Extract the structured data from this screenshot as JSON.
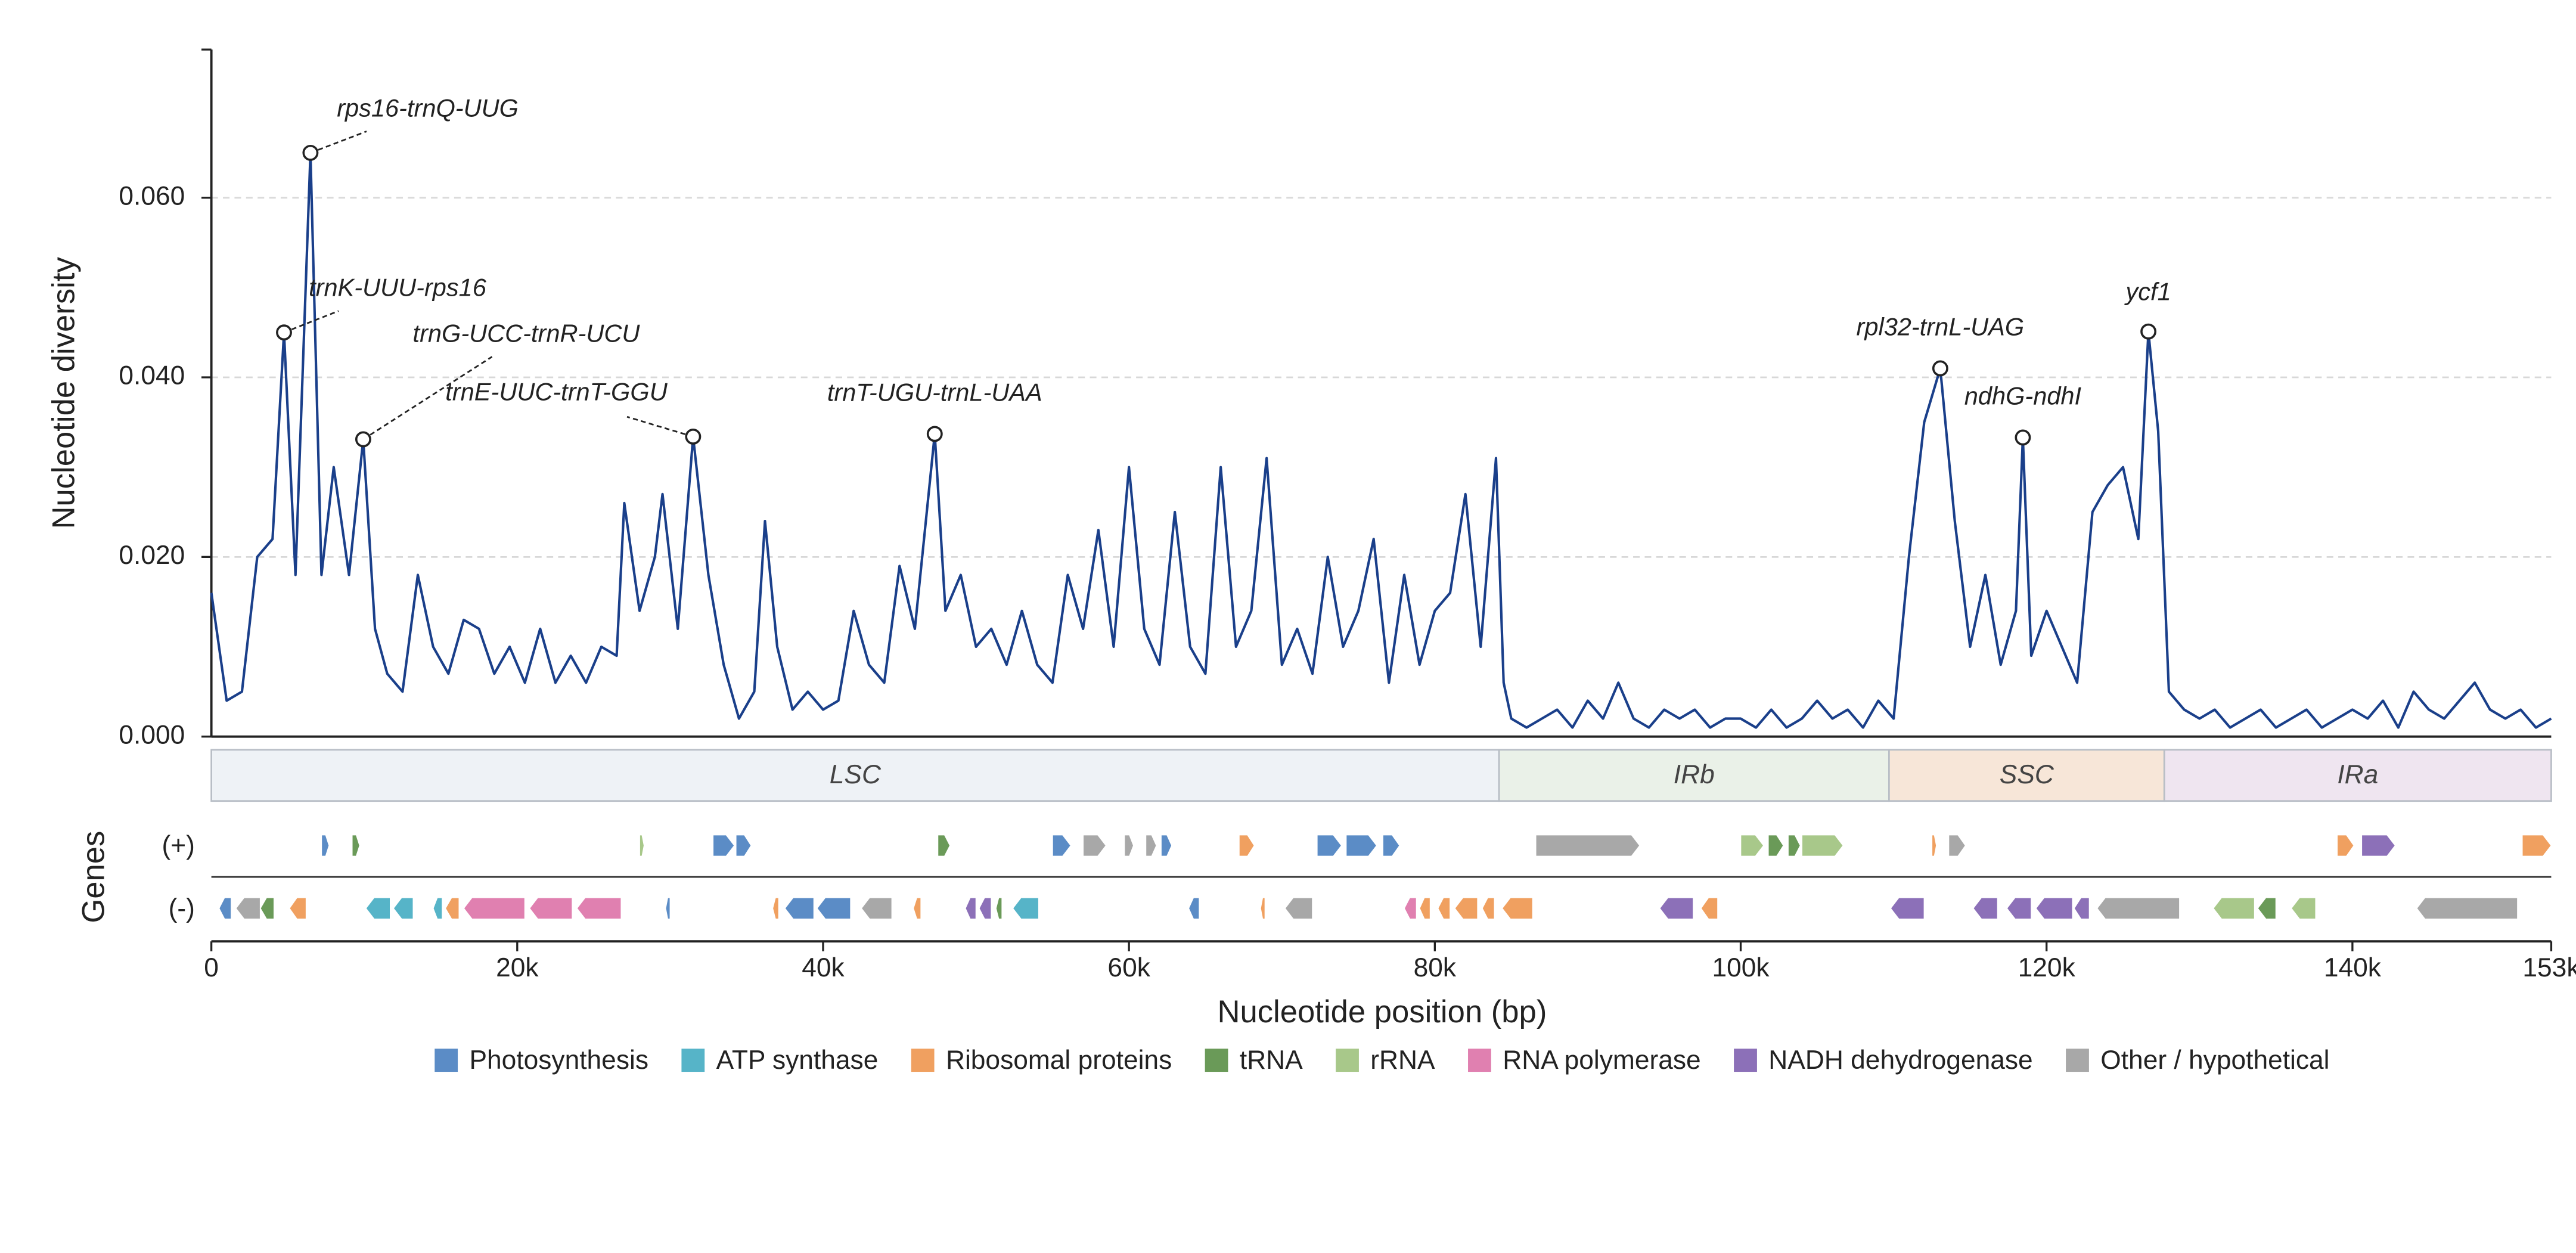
{
  "chart_data": {
    "type": "line",
    "ylabel": "Nucleotide diversity",
    "xlabel": "Nucleotide position (bp)",
    "color": "#1a3f8a",
    "grid": true,
    "xlim": [
      0,
      153000
    ],
    "ylim": [
      0,
      0.0765
    ],
    "xticks": [
      0,
      {
        "value": 20000,
        "label": "20k"
      },
      {
        "value": 40000,
        "label": "40k"
      },
      {
        "value": 60000,
        "label": "60k"
      },
      {
        "value": 80000,
        "label": "80k"
      },
      {
        "value": 100000,
        "label": "100k"
      },
      {
        "value": 120000,
        "label": "120k"
      },
      {
        "value": 140000,
        "label": "140k"
      },
      {
        "value": 153000,
        "label": "153k"
      }
    ],
    "yticks": [
      {
        "value": 0,
        "label": "0.000"
      },
      {
        "value": 0.02,
        "label": "0.020"
      },
      {
        "value": 0.04,
        "label": "0.040"
      },
      {
        "value": 0.06,
        "label": "0.060"
      }
    ],
    "x": [
      0,
      1000,
      2000,
      3000,
      4000,
      4750,
      5500,
      6480,
      7200,
      8000,
      9000,
      9930,
      10700,
      11500,
      12500,
      13500,
      14500,
      15500,
      16500,
      17500,
      18500,
      19500,
      20500,
      21500,
      22500,
      23500,
      24500,
      25500,
      26500,
      27000,
      28000,
      29000,
      29500,
      30500,
      31500,
      32500,
      33500,
      34500,
      35500,
      36200,
      37000,
      38000,
      39000,
      40000,
      41000,
      42000,
      43000,
      44000,
      45000,
      46000,
      47300,
      48000,
      49000,
      50000,
      51000,
      52000,
      53000,
      54000,
      55000,
      56000,
      57000,
      58000,
      59000,
      60000,
      61000,
      62000,
      63000,
      64000,
      65000,
      66000,
      67000,
      68000,
      69000,
      70000,
      71000,
      72000,
      73000,
      74000,
      75000,
      76000,
      77000,
      78000,
      79000,
      80000,
      81000,
      82000,
      83000,
      84000,
      84500,
      85000,
      86000,
      87000,
      88000,
      89000,
      90000,
      91000,
      92000,
      93000,
      94000,
      95000,
      96000,
      97000,
      98000,
      99000,
      100000,
      101000,
      102000,
      103000,
      104000,
      105000,
      106000,
      107000,
      108000,
      109000,
      110000,
      111000,
      112000,
      113050,
      114000,
      115000,
      116000,
      117000,
      118000,
      118450,
      119000,
      120000,
      121000,
      122000,
      123000,
      124000,
      125000,
      126000,
      126660,
      127300,
      128000,
      129000,
      130000,
      131000,
      132000,
      133000,
      134000,
      135000,
      136000,
      137000,
      138000,
      139000,
      140000,
      141000,
      142000,
      143000,
      144000,
      145000,
      146000,
      147000,
      148000,
      149000,
      150000,
      151000,
      152000,
      153000
    ],
    "values": [
      0.016,
      0.004,
      0.005,
      0.02,
      0.022,
      0.045,
      0.018,
      0.065,
      0.018,
      0.03,
      0.018,
      0.0331,
      0.012,
      0.007,
      0.005,
      0.018,
      0.01,
      0.007,
      0.013,
      0.012,
      0.007,
      0.01,
      0.006,
      0.012,
      0.006,
      0.009,
      0.006,
      0.01,
      0.009,
      0.026,
      0.014,
      0.02,
      0.027,
      0.012,
      0.0334,
      0.018,
      0.008,
      0.002,
      0.005,
      0.024,
      0.01,
      0.003,
      0.005,
      0.003,
      0.004,
      0.014,
      0.008,
      0.006,
      0.019,
      0.012,
      0.0337,
      0.014,
      0.018,
      0.01,
      0.012,
      0.008,
      0.014,
      0.008,
      0.006,
      0.018,
      0.012,
      0.023,
      0.01,
      0.03,
      0.012,
      0.008,
      0.025,
      0.01,
      0.007,
      0.03,
      0.01,
      0.014,
      0.031,
      0.008,
      0.012,
      0.007,
      0.02,
      0.01,
      0.014,
      0.022,
      0.006,
      0.018,
      0.008,
      0.014,
      0.016,
      0.027,
      0.01,
      0.031,
      0.006,
      0.002,
      0.001,
      0.002,
      0.003,
      0.001,
      0.004,
      0.002,
      0.006,
      0.002,
      0.001,
      0.003,
      0.002,
      0.003,
      0.001,
      0.002,
      0.002,
      0.001,
      0.003,
      0.001,
      0.002,
      0.004,
      0.002,
      0.003,
      0.001,
      0.004,
      0.002,
      0.02,
      0.035,
      0.041,
      0.024,
      0.01,
      0.018,
      0.008,
      0.014,
      0.0333,
      0.009,
      0.014,
      0.01,
      0.006,
      0.025,
      0.028,
      0.03,
      0.022,
      0.0451,
      0.034,
      0.005,
      0.003,
      0.002,
      0.003,
      0.001,
      0.002,
      0.003,
      0.001,
      0.002,
      0.003,
      0.001,
      0.002,
      0.003,
      0.002,
      0.004,
      0.001,
      0.005,
      0.003,
      0.002,
      0.004,
      0.006,
      0.003,
      0.002,
      0.003,
      0.001,
      0.002
    ],
    "annotations": [
      {
        "text": "rps16-trnQ-UUG",
        "x": 6480,
        "y": 0.065
      },
      {
        "text": "trnK-UUU-rps16",
        "x": 4750,
        "y": 0.045
      },
      {
        "text": "trnG-UCC-trnR-UCU",
        "x": 9930,
        "y": 0.0331
      },
      {
        "text": "trnE-UUC-trnT-GGU",
        "x": 31500,
        "y": 0.0334
      },
      {
        "text": "trnT-UGU-trnL-UAA",
        "x": 47300,
        "y": 0.0337
      },
      {
        "text": "rpl32-trnL-UAG",
        "x": 113050,
        "y": 0.041
      },
      {
        "text": "ndhG-ndhI",
        "x": 118450,
        "y": 0.0333
      },
      {
        "text": "ycf1",
        "x": 126660,
        "y": 0.0451
      }
    ],
    "regions": [
      {
        "name": "LSC",
        "start": 0,
        "end": 84200,
        "color": "#eef2f6"
      },
      {
        "name": "IRb",
        "start": 84200,
        "end": 109700,
        "color": "#eaf1e8"
      },
      {
        "name": "SSC",
        "start": 109700,
        "end": 127700,
        "color": "#f7e6d8"
      },
      {
        "name": "IRa",
        "start": 127700,
        "end": 153000,
        "color": "#efe5f0"
      }
    ],
    "gene_track_title": "Genes",
    "plus_label": "(+)",
    "minus_label": "(-)",
    "legend": [
      {
        "name": "Photosynthesis",
        "color": "#5b8cc6"
      },
      {
        "name": "ATP synthase",
        "color": "#56b4c8"
      },
      {
        "name": "Ribosomal proteins",
        "color": "#f0a060"
      },
      {
        "name": "tRNA",
        "color": "#6a9a58"
      },
      {
        "name": "rRNA",
        "color": "#a8c88a"
      },
      {
        "name": "RNA polymerase",
        "color": "#e080b0"
      },
      {
        "name": "NADH dehydrogenase",
        "color": "#8c70b8"
      },
      {
        "name": "Other / hypothetical",
        "color": "#a8a8a8"
      }
    ],
    "genes": [
      {
        "start": 7200,
        "end": 7700,
        "strand": "+",
        "category": "Photosynthesis"
      },
      {
        "start": 9200,
        "end": 9700,
        "strand": "+",
        "category": "tRNA"
      },
      {
        "start": 28000,
        "end": 28300,
        "strand": "+",
        "category": "rRNA"
      },
      {
        "start": 32800,
        "end": 34200,
        "strand": "+",
        "category": "Photosynthesis"
      },
      {
        "start": 34300,
        "end": 35300,
        "strand": "+",
        "category": "Photosynthesis"
      },
      {
        "start": 47500,
        "end": 48300,
        "strand": "+",
        "category": "tRNA"
      },
      {
        "start": 55000,
        "end": 56200,
        "strand": "+",
        "category": "Photosynthesis"
      },
      {
        "start": 57000,
        "end": 58500,
        "strand": "+",
        "category": "Other / hypothetical"
      },
      {
        "start": 59700,
        "end": 60300,
        "strand": "+",
        "category": "Other / hypothetical"
      },
      {
        "start": 61100,
        "end": 61800,
        "strand": "+",
        "category": "Other / hypothetical"
      },
      {
        "start": 62100,
        "end": 62800,
        "strand": "+",
        "category": "Photosynthesis"
      },
      {
        "start": 67200,
        "end": 68200,
        "strand": "+",
        "category": "Ribosomal proteins"
      },
      {
        "start": 72300,
        "end": 73900,
        "strand": "+",
        "category": "Photosynthesis"
      },
      {
        "start": 74200,
        "end": 76200,
        "strand": "+",
        "category": "Photosynthesis"
      },
      {
        "start": 76600,
        "end": 77700,
        "strand": "+",
        "category": "Photosynthesis"
      },
      {
        "start": 86600,
        "end": 93400,
        "strand": "+",
        "category": "Other / hypothetical"
      },
      {
        "start": 100000,
        "end": 101500,
        "strand": "+",
        "category": "rRNA"
      },
      {
        "start": 101800,
        "end": 102800,
        "strand": "+",
        "category": "tRNA"
      },
      {
        "start": 103100,
        "end": 103900,
        "strand": "+",
        "category": "tRNA"
      },
      {
        "start": 104000,
        "end": 106700,
        "strand": "+",
        "category": "rRNA"
      },
      {
        "start": 112500,
        "end": 112800,
        "strand": "+",
        "category": "Ribosomal proteins"
      },
      {
        "start": 113600,
        "end": 114700,
        "strand": "+",
        "category": "Other / hypothetical"
      },
      {
        "start": 139000,
        "end": 140100,
        "strand": "+",
        "category": "Ribosomal proteins"
      },
      {
        "start": 140600,
        "end": 142800,
        "strand": "+",
        "category": "NADH dehydrogenase"
      },
      {
        "start": 151100,
        "end": 153000,
        "strand": "+",
        "category": "Ribosomal proteins"
      },
      {
        "start": 500,
        "end": 1300,
        "strand": "-",
        "category": "Photosynthesis"
      },
      {
        "start": 1600,
        "end": 3200,
        "strand": "-",
        "category": "Other / hypothetical"
      },
      {
        "start": 3200,
        "end": 4100,
        "strand": "-",
        "category": "tRNA"
      },
      {
        "start": 5100,
        "end": 6200,
        "strand": "-",
        "category": "Ribosomal proteins"
      },
      {
        "start": 10100,
        "end": 11700,
        "strand": "-",
        "category": "ATP synthase"
      },
      {
        "start": 11900,
        "end": 13200,
        "strand": "-",
        "category": "ATP synthase"
      },
      {
        "start": 14500,
        "end": 15100,
        "strand": "-",
        "category": "ATP synthase"
      },
      {
        "start": 15300,
        "end": 16200,
        "strand": "-",
        "category": "Ribosomal proteins"
      },
      {
        "start": 16500,
        "end": 20500,
        "strand": "-",
        "category": "RNA polymerase"
      },
      {
        "start": 20800,
        "end": 23600,
        "strand": "-",
        "category": "RNA polymerase"
      },
      {
        "start": 23900,
        "end": 26800,
        "strand": "-",
        "category": "RNA polymerase"
      },
      {
        "start": 29700,
        "end": 30000,
        "strand": "-",
        "category": "Photosynthesis"
      },
      {
        "start": 36700,
        "end": 37100,
        "strand": "-",
        "category": "Ribosomal proteins"
      },
      {
        "start": 37500,
        "end": 39400,
        "strand": "-",
        "category": "Photosynthesis"
      },
      {
        "start": 39600,
        "end": 41800,
        "strand": "-",
        "category": "Photosynthesis"
      },
      {
        "start": 42500,
        "end": 44500,
        "strand": "-",
        "category": "Other / hypothetical"
      },
      {
        "start": 45900,
        "end": 46400,
        "strand": "-",
        "category": "Ribosomal proteins"
      },
      {
        "start": 49300,
        "end": 50000,
        "strand": "-",
        "category": "NADH dehydrogenase"
      },
      {
        "start": 50200,
        "end": 51000,
        "strand": "-",
        "category": "NADH dehydrogenase"
      },
      {
        "start": 51300,
        "end": 51700,
        "strand": "-",
        "category": "tRNA"
      },
      {
        "start": 52400,
        "end": 54100,
        "strand": "-",
        "category": "ATP synthase"
      },
      {
        "start": 63900,
        "end": 64600,
        "strand": "-",
        "category": "Photosynthesis"
      },
      {
        "start": 68600,
        "end": 68900,
        "strand": "-",
        "category": "Ribosomal proteins"
      },
      {
        "start": 70200,
        "end": 72000,
        "strand": "-",
        "category": "Other / hypothetical"
      },
      {
        "start": 78000,
        "end": 78800,
        "strand": "-",
        "category": "RNA polymerase"
      },
      {
        "start": 79000,
        "end": 79700,
        "strand": "-",
        "category": "Ribosomal proteins"
      },
      {
        "start": 80200,
        "end": 81000,
        "strand": "-",
        "category": "Ribosomal proteins"
      },
      {
        "start": 81300,
        "end": 82800,
        "strand": "-",
        "category": "Ribosomal proteins"
      },
      {
        "start": 83100,
        "end": 83900,
        "strand": "-",
        "category": "Ribosomal proteins"
      },
      {
        "start": 84400,
        "end": 86400,
        "strand": "-",
        "category": "Ribosomal proteins"
      },
      {
        "start": 94700,
        "end": 96900,
        "strand": "-",
        "category": "NADH dehydrogenase"
      },
      {
        "start": 97400,
        "end": 98500,
        "strand": "-",
        "category": "Ribosomal proteins"
      },
      {
        "start": 109800,
        "end": 112000,
        "strand": "-",
        "category": "NADH dehydrogenase"
      },
      {
        "start": 115200,
        "end": 116800,
        "strand": "-",
        "category": "NADH dehydrogenase"
      },
      {
        "start": 117400,
        "end": 119000,
        "strand": "-",
        "category": "NADH dehydrogenase"
      },
      {
        "start": 119300,
        "end": 121700,
        "strand": "-",
        "category": "NADH dehydrogenase"
      },
      {
        "start": 121800,
        "end": 122800,
        "strand": "-",
        "category": "NADH dehydrogenase"
      },
      {
        "start": 123300,
        "end": 128700,
        "strand": "-",
        "category": "Other / hypothetical"
      },
      {
        "start": 130900,
        "end": 133600,
        "strand": "-",
        "category": "rRNA"
      },
      {
        "start": 133800,
        "end": 135000,
        "strand": "-",
        "category": "tRNA"
      },
      {
        "start": 136000,
        "end": 137600,
        "strand": "-",
        "category": "rRNA"
      },
      {
        "start": 144200,
        "end": 150800,
        "strand": "-",
        "category": "Other / hypothetical"
      }
    ]
  }
}
